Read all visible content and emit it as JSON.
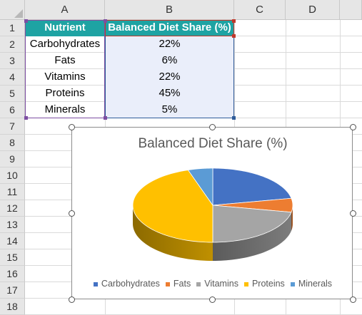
{
  "sheet": {
    "columns": [
      "A",
      "B",
      "C",
      "D"
    ],
    "rows": [
      "1",
      "2",
      "3",
      "4",
      "5",
      "6",
      "7",
      "8",
      "9",
      "10",
      "11",
      "12",
      "13",
      "14",
      "15",
      "16",
      "17",
      "18"
    ],
    "table": {
      "header": {
        "a": "Nutrient",
        "b": "Balanced Diet Share (%)"
      },
      "rows": [
        {
          "a": "Carbohydrates",
          "b": "22%"
        },
        {
          "a": "Fats",
          "b": "6%"
        },
        {
          "a": "Vitamins",
          "b": "22%"
        },
        {
          "a": "Proteins",
          "b": "45%"
        },
        {
          "a": "Minerals",
          "b": "5%"
        }
      ]
    }
  },
  "colors": {
    "header_fill": "#1ea3a3",
    "data_fill": "#eaeefa"
  },
  "chart_data": {
    "type": "pie",
    "style": "3d",
    "title": "Balanced Diet Share (%)",
    "categories": [
      "Carbohydrates",
      "Fats",
      "Vitamins",
      "Proteins",
      "Minerals"
    ],
    "values": [
      22,
      6,
      22,
      45,
      5
    ],
    "colors": [
      "#4472c4",
      "#ed7d31",
      "#a5a5a5",
      "#ffc000",
      "#5b9bd5"
    ],
    "legend": "bottom"
  }
}
